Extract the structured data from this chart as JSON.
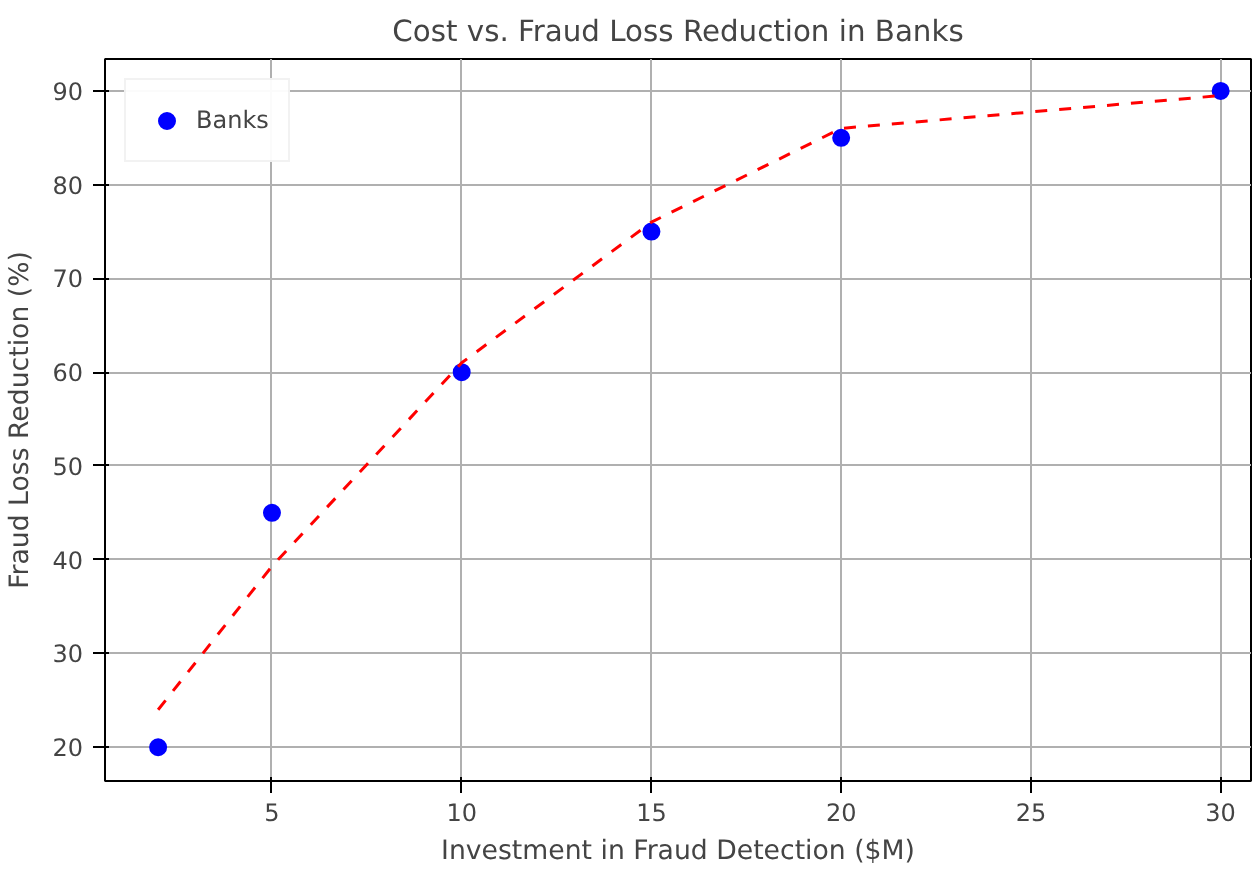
{
  "chart_data": {
    "type": "scatter",
    "title": "Cost vs. Fraud Loss Reduction in Banks",
    "xlabel": "Investment in Fraud Detection ($M)",
    "ylabel": "Fraud Loss Reduction (%)",
    "xlim": [
      0.6,
      30.8
    ],
    "ylim": [
      16.4,
      93.4
    ],
    "xticks": [
      5,
      10,
      15,
      20,
      25,
      30
    ],
    "yticks": [
      20,
      30,
      40,
      50,
      60,
      70,
      80,
      90
    ],
    "grid": true,
    "legend": "top left",
    "marker": "circle",
    "series": [
      {
        "name": "Banks",
        "color": "#0000ff",
        "x": [
          2,
          5,
          10,
          15,
          20,
          30
        ],
        "values": [
          20,
          45,
          60,
          75,
          85,
          90
        ]
      },
      {
        "type": "line",
        "color": "#ff0000",
        "line_style": "dashed",
        "marker": "none",
        "x": [
          2,
          5,
          10,
          15,
          20,
          30
        ],
        "values": [
          24,
          39.3,
          61,
          76,
          86,
          89.5
        ]
      }
    ]
  }
}
